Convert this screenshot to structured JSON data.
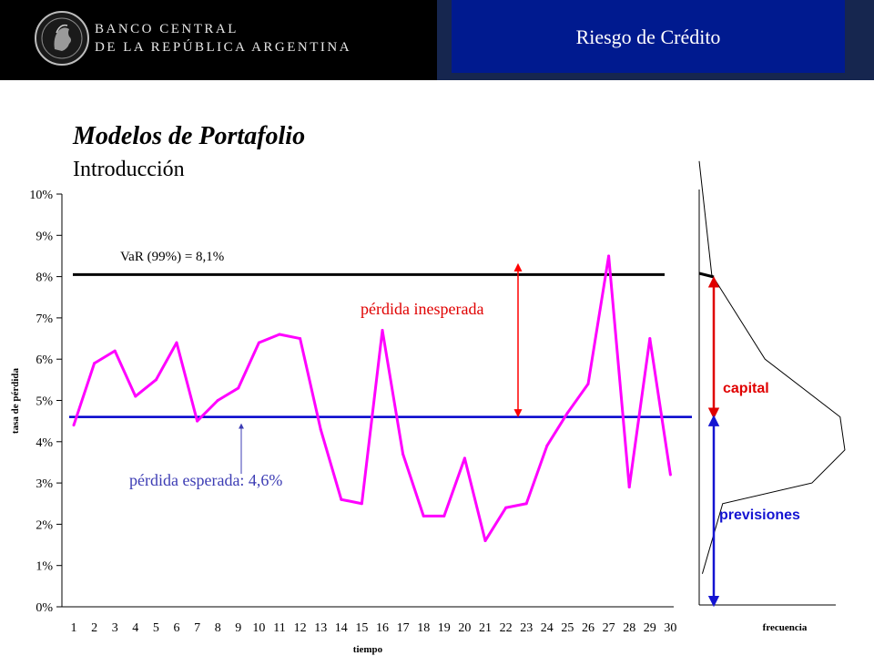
{
  "header": {
    "logo_line1": "BANCO CENTRAL",
    "logo_line2": "DE LA REPÚBLICA ARGENTINA",
    "title": "Riesgo de Crédito"
  },
  "slide": {
    "title": "Modelos de Portafolio",
    "subtitle": "Introducción"
  },
  "colors": {
    "series": "#ff00ff",
    "var_line": "#000000",
    "expected_line": "#0000cc",
    "unexpected_arrow": "#ff0000",
    "expected_label": "#3c3cb4",
    "capital": "#e00000",
    "previsiones": "#1414d2"
  },
  "chart_data": [
    {
      "type": "line",
      "title": "",
      "xlabel": "tiempo",
      "ylabel": "tasa de pérdida",
      "x": [
        1,
        2,
        3,
        4,
        5,
        6,
        7,
        8,
        9,
        10,
        11,
        12,
        13,
        14,
        15,
        16,
        17,
        18,
        19,
        20,
        21,
        22,
        23,
        24,
        25,
        26,
        27,
        28,
        29,
        30
      ],
      "ytick_labels": [
        "0%",
        "1%",
        "2%",
        "3%",
        "4%",
        "5%",
        "6%",
        "7%",
        "8%",
        "9%",
        "10%"
      ],
      "ylim": [
        0,
        10
      ],
      "series": [
        {
          "values": [
            4.4,
            5.9,
            6.2,
            5.1,
            5.5,
            6.4,
            4.5,
            5.0,
            5.3,
            6.4,
            6.6,
            6.5,
            4.3,
            2.6,
            2.5,
            6.7,
            3.7,
            2.2,
            2.2,
            3.6,
            1.6,
            2.4,
            2.5,
            3.9,
            4.7,
            5.4,
            8.5,
            2.9,
            6.5,
            3.2
          ]
        }
      ],
      "reference_lines": [
        {
          "label": "VaR (99%) = 8,1%",
          "value": 8.05
        },
        {
          "label": "pérdida esperada:  4,6%",
          "value": 4.6
        }
      ],
      "annotations": [
        {
          "label": "pérdida inesperada",
          "from": 4.6,
          "to": 8.05
        }
      ],
      "grid": false,
      "legend": "none"
    },
    {
      "type": "area",
      "xlabel": "frecuencia",
      "description_labels": [
        "capital",
        "previsiones"
      ],
      "y": [
        10.8,
        8.05,
        6.0,
        4.6,
        3.8,
        3.0,
        2.5,
        0.8
      ],
      "frequency": [
        0.0,
        0.08,
        0.42,
        0.9,
        0.93,
        0.72,
        0.15,
        0.02
      ]
    }
  ]
}
